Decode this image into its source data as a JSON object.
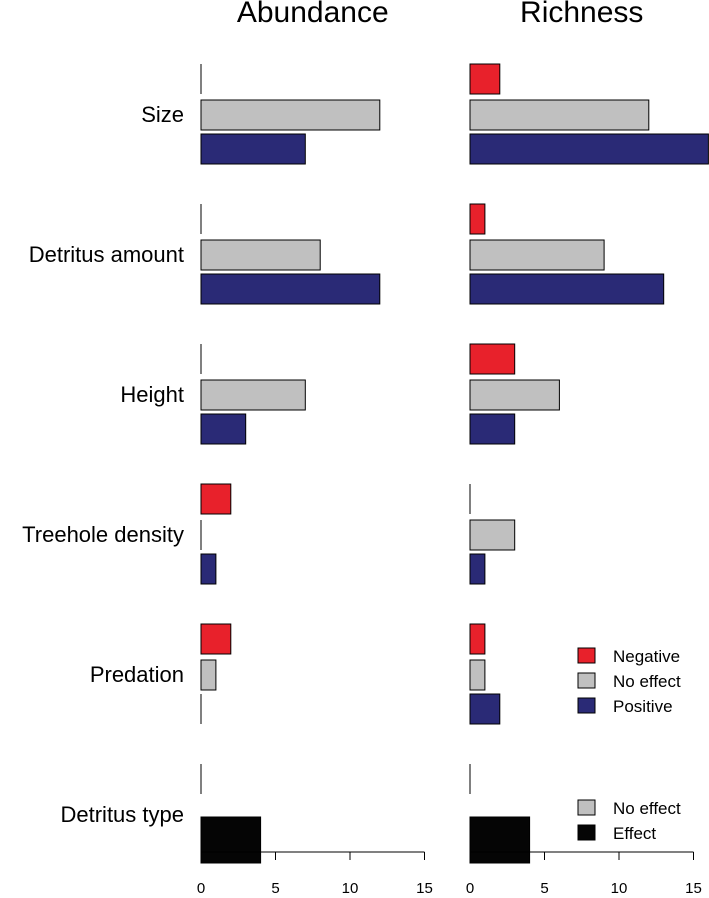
{
  "colors": {
    "negative": "#e8212b",
    "no_effect": "#c0c0c0",
    "positive": "#2a2a76",
    "effect": "#050505",
    "outline": "#000000"
  },
  "chart_data": [
    {
      "type": "bar",
      "orientation": "horizontal",
      "title": "Abundance",
      "categories": [
        "Size",
        "Detritus amount",
        "Height",
        "Treehole density",
        "Predation",
        "Detritus type"
      ],
      "series": [
        {
          "name": "Negative",
          "values": [
            0,
            0,
            0,
            2,
            2,
            null
          ]
        },
        {
          "name": "No effect",
          "values": [
            12,
            8,
            7,
            0,
            1,
            0
          ]
        },
        {
          "name": "Positive",
          "values": [
            7,
            12,
            3,
            1,
            0,
            null
          ]
        },
        {
          "name": "Effect",
          "values": [
            null,
            null,
            null,
            null,
            null,
            4
          ]
        }
      ],
      "xlim": [
        0,
        15
      ],
      "xticks": [
        0,
        5,
        10,
        15
      ]
    },
    {
      "type": "bar",
      "orientation": "horizontal",
      "title": "Richness",
      "categories": [
        "Size",
        "Detritus amount",
        "Height",
        "Treehole density",
        "Predation",
        "Detritus type"
      ],
      "series": [
        {
          "name": "Negative",
          "values": [
            2,
            1,
            3,
            0,
            1,
            null
          ]
        },
        {
          "name": "No effect",
          "values": [
            12,
            9,
            6,
            3,
            1,
            0
          ]
        },
        {
          "name": "Positive",
          "values": [
            16,
            13,
            3,
            1,
            2,
            null
          ]
        },
        {
          "name": "Effect",
          "values": [
            null,
            null,
            null,
            null,
            null,
            4
          ]
        }
      ],
      "xlim": [
        0,
        15
      ],
      "xticks": [
        0,
        5,
        10,
        15
      ]
    }
  ],
  "legends": [
    {
      "placement": "right of Predation (Richness panel)",
      "entries": [
        "Negative",
        "No effect",
        "Positive"
      ]
    },
    {
      "placement": "right of Detritus type (Richness panel)",
      "entries": [
        "No effect",
        "Effect"
      ]
    }
  ]
}
